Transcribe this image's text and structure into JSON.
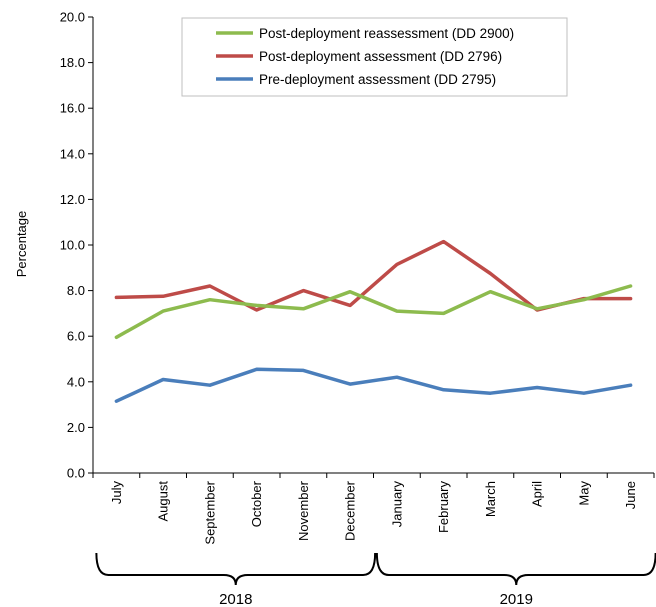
{
  "chart_data": {
    "type": "line",
    "title": "",
    "xlabel": "",
    "ylabel": "Percentage",
    "ylim": [
      0,
      20
    ],
    "yticks": [
      "0.0",
      "2.0",
      "4.0",
      "6.0",
      "8.0",
      "10.0",
      "12.0",
      "14.0",
      "16.0",
      "18.0",
      "20.0"
    ],
    "categories": [
      "July",
      "August",
      "September",
      "October",
      "November",
      "December",
      "January",
      "February",
      "March",
      "April",
      "May",
      "June"
    ],
    "year_groups": [
      {
        "label": "2018",
        "from": 0,
        "to": 5
      },
      {
        "label": "2019",
        "from": 6,
        "to": 11
      }
    ],
    "legend_position": "top-center",
    "grid": false,
    "series": [
      {
        "name": "Post-deployment reassessment (DD 2900)",
        "color": "#8DBB4E",
        "values": [
          5.95,
          7.1,
          7.6,
          7.35,
          7.2,
          7.95,
          7.1,
          7.0,
          7.95,
          7.2,
          7.6,
          8.2
        ]
      },
      {
        "name": "Post-deployment assessment (DD 2796)",
        "color": "#BE4B48",
        "values": [
          7.7,
          7.75,
          8.2,
          7.15,
          8.0,
          7.35,
          9.15,
          10.15,
          8.75,
          7.15,
          7.65,
          7.65
        ]
      },
      {
        "name": "Pre-deployment assessment (DD 2795)",
        "color": "#4A7EBB",
        "values": [
          3.15,
          4.1,
          3.85,
          4.55,
          4.5,
          3.9,
          4.2,
          3.65,
          3.5,
          3.75,
          3.5,
          3.85
        ]
      }
    ]
  }
}
